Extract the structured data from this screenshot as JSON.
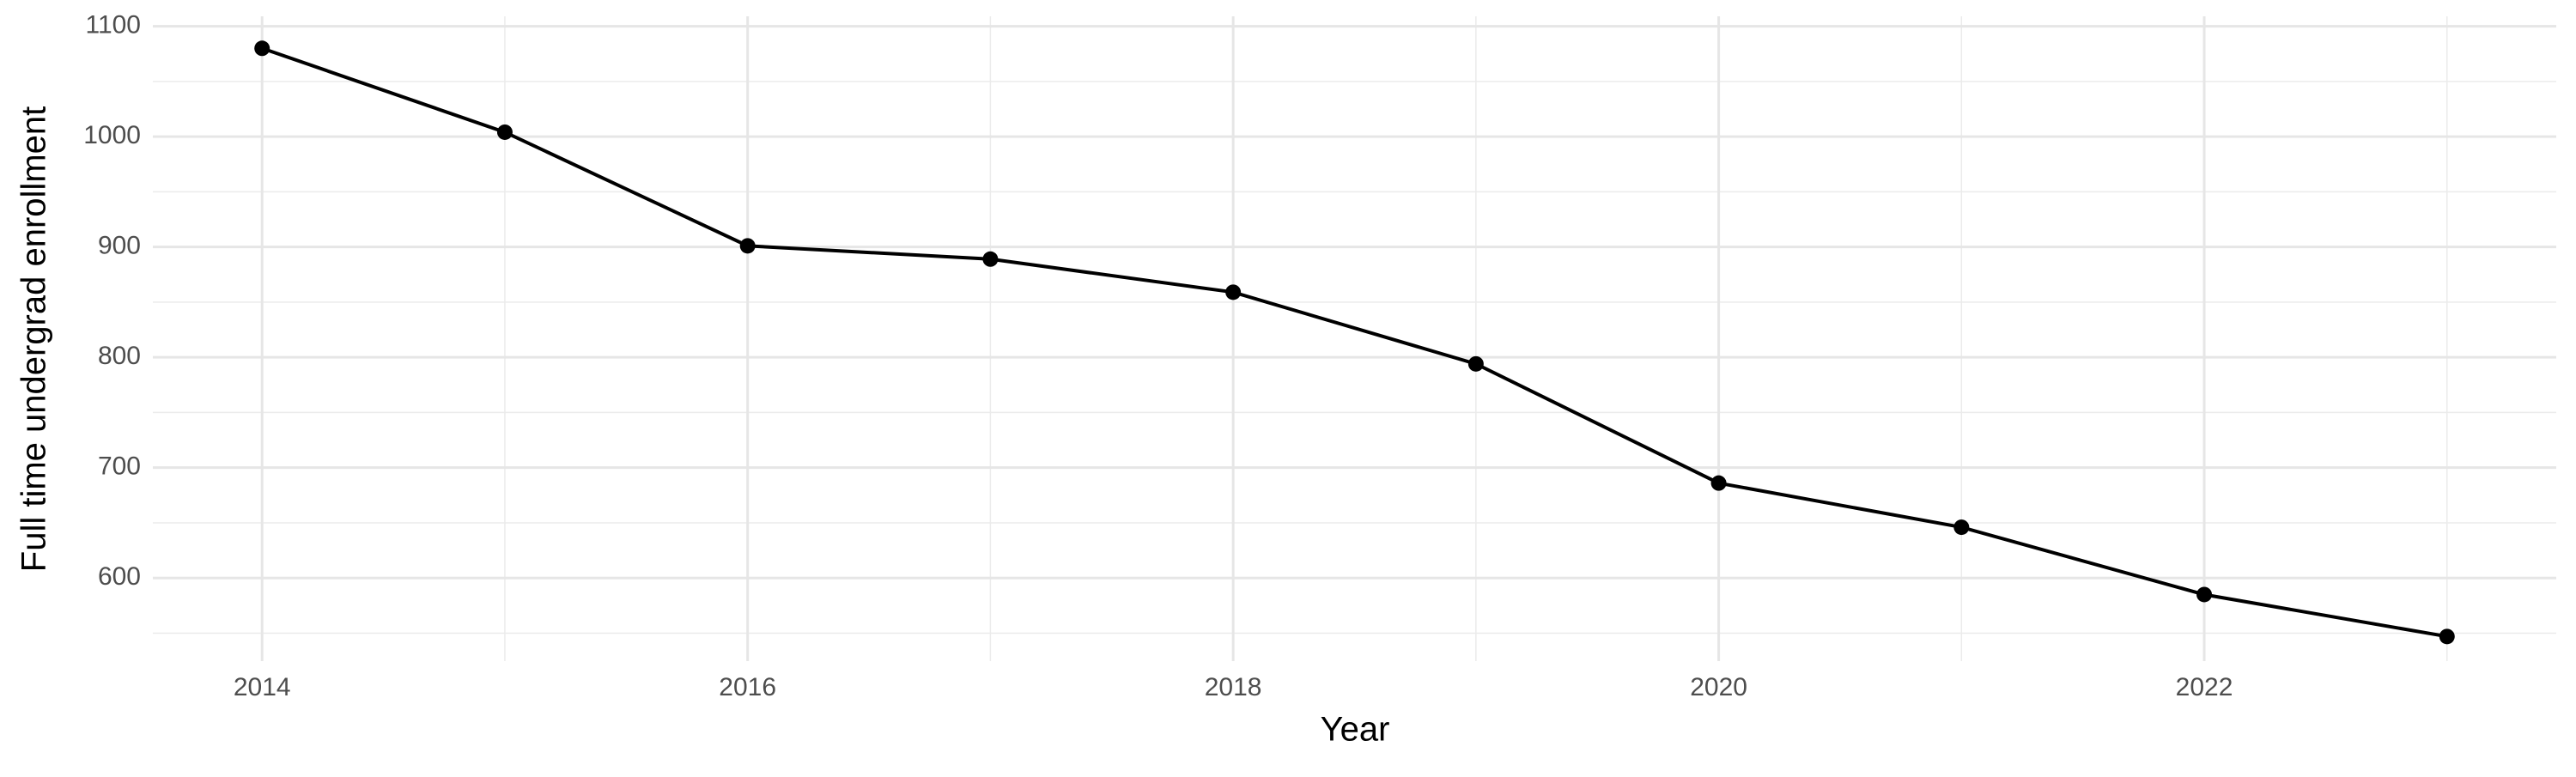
{
  "chart_data": {
    "type": "line",
    "x_label": "Year",
    "y_label": "Full time undergrad enrollment",
    "x": [
      2014,
      2015,
      2016,
      2017,
      2018,
      2019,
      2020,
      2021,
      2022,
      2023
    ],
    "series": [
      {
        "color": "#000000",
        "values": [
          1080,
          1004,
          901,
          889,
          859,
          794,
          686,
          646,
          585,
          547
        ]
      }
    ],
    "xlim": [
      2013.55,
      2023.45
    ],
    "xticks": [
      2014,
      2016,
      2018,
      2020,
      2022
    ],
    "ylim": [
      524.7,
      1109
    ],
    "yticks": [
      600,
      700,
      800,
      900,
      1000,
      1100
    ],
    "grid": true
  }
}
